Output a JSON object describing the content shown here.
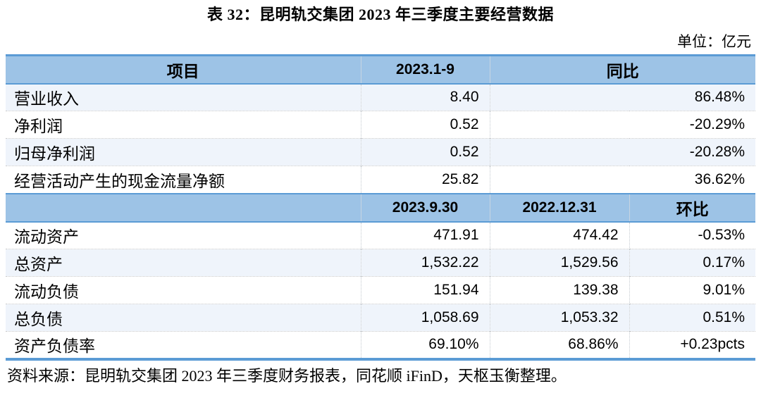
{
  "title": "表 32：昆明轨交集团 2023 年三季度主要经营数据",
  "unit_label": "单位：亿元",
  "table": {
    "section1": {
      "headers": [
        "项目",
        "2023.1-9",
        "同比"
      ],
      "rows": [
        {
          "label": "营业收入",
          "value": "8.40",
          "yoy": "86.48%"
        },
        {
          "label": "净利润",
          "value": "0.52",
          "yoy": "-20.29%"
        },
        {
          "label": "归母净利润",
          "value": "0.52",
          "yoy": "-20.28%"
        },
        {
          "label": "经营活动产生的现金流量净额",
          "value": "25.82",
          "yoy": "36.62%"
        }
      ]
    },
    "section2": {
      "headers": [
        "",
        "2023.9.30",
        "2022.12.31",
        "环比"
      ],
      "rows": [
        {
          "label": "流动资产",
          "current": "471.91",
          "previous": "474.42",
          "qoq": "-0.53%"
        },
        {
          "label": "总资产",
          "current": "1,532.22",
          "previous": "1,529.56",
          "qoq": "0.17%"
        },
        {
          "label": "流动负债",
          "current": "151.94",
          "previous": "139.38",
          "qoq": "9.01%"
        },
        {
          "label": "总负债",
          "current": "1,058.69",
          "previous": "1,053.32",
          "qoq": "0.51%"
        },
        {
          "label": "资产负债率",
          "current": "69.10%",
          "previous": "68.86%",
          "qoq": "+0.23pcts"
        }
      ]
    }
  },
  "source": "资料来源：昆明轨交集团 2023 年三季度财务报表，同花顺 iFinD，天枢玉衡整理。",
  "colors": {
    "header_bg": "#9DC3E6",
    "band_bg": "#EFF4FB",
    "border_blue": "#5B9BD5"
  }
}
